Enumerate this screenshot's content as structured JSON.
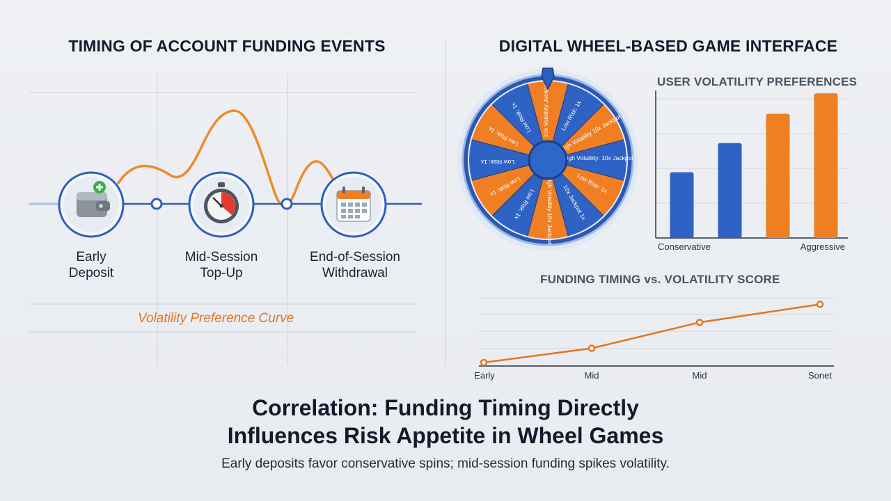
{
  "left_panel": {
    "title": "TIMING OF ACCOUNT FUNDING EVENTS",
    "events": [
      {
        "line1": "Early",
        "line2": "Deposit",
        "icon": "wallet-icon"
      },
      {
        "line1": "Mid-Session",
        "line2": "Top-Up",
        "icon": "stopwatch-icon"
      },
      {
        "line1": "End-of-Session",
        "line2": "Withdrawal",
        "icon": "calendar-icon"
      }
    ],
    "curve_label": "Volatility Preference Curve"
  },
  "right_panel": {
    "title": "DIGITAL WHEEL-BASED GAME INTERFACE",
    "wheel": {
      "segments": [
        "10x Volatility Jackpot",
        "Low Risk: 1x",
        "High Volatility 10x Jackpot",
        "High Volatility: 10x Jackpot",
        "Low Risk: 1x",
        "10x Jackpot 1x",
        "High Volatility 10x Jackpot",
        "Low Risk: 1x",
        "Low Risk: 1x",
        "Low Risk: 1x",
        "Low Risk: 1x",
        "Low Risk: 1x"
      ]
    }
  },
  "chart_data": [
    {
      "type": "bar",
      "title": "USER VOLATILITY PREFERENCES",
      "x_tick_labels": [
        "Conservative",
        "Aggressive"
      ],
      "values": [
        0.45,
        0.65,
        0.85,
        0.99
      ],
      "bar_colors": [
        "#2e62c4",
        "#2e62c4",
        "#ef7f22",
        "#ef7f22"
      ],
      "grid": true
    },
    {
      "type": "line",
      "title": "FUNDING TIMING vs. VOLATILITY SCORE",
      "categories": [
        "Early",
        "Mid",
        "Mid",
        "Sonet"
      ],
      "values": [
        0.0,
        0.22,
        0.62,
        0.9
      ],
      "color": "#e3761d",
      "grid": true
    }
  ],
  "footer": {
    "headline_line1": "Correlation: Funding Timing Directly",
    "headline_line2": "Influences Risk Appetite in Wheel Games",
    "subline": "Early deposits favor conservative spins; mid-session funding spikes volatility."
  },
  "colors": {
    "accent_blue": "#2e62c4",
    "accent_orange": "#ef7f22"
  }
}
